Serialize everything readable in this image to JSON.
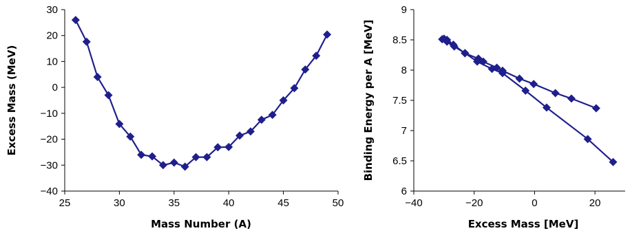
{
  "colors": {
    "series": "#1f1f8c",
    "axis": "#000000",
    "background": "#ffffff"
  },
  "chart_data": [
    {
      "type": "line",
      "title": "",
      "xlabel": "Mass Number (A)",
      "ylabel": "Excess Mass (MeV)",
      "xlim": [
        25,
        50
      ],
      "ylim": [
        -40,
        30
      ],
      "x_ticks": [
        25,
        30,
        35,
        40,
        45,
        50
      ],
      "y_ticks": [
        30,
        20,
        10,
        0,
        -10,
        -20,
        -30,
        -40
      ],
      "grid": false,
      "legend": "none",
      "marker": "diamond",
      "series": [
        {
          "x": [
            26,
            27,
            28,
            29,
            30,
            31,
            32,
            33,
            34,
            35,
            36,
            37,
            38,
            39,
            40,
            41,
            42,
            43,
            44,
            45,
            46,
            47,
            48,
            49
          ],
          "y": [
            26.0,
            17.6,
            4.0,
            -3.0,
            -14.1,
            -19.0,
            -26.0,
            -26.6,
            -30.0,
            -29.0,
            -30.6,
            -26.9,
            -26.9,
            -23.1,
            -23.0,
            -18.6,
            -17.0,
            -12.5,
            -10.6,
            -5.0,
            -0.3,
            6.9,
            12.2,
            20.4
          ]
        }
      ]
    },
    {
      "type": "line",
      "title": "",
      "xlabel": "Excess Mass [MeV]",
      "ylabel": "Binding Energy per A [MeV]",
      "xlim": [
        -40,
        30
      ],
      "ylim": [
        6,
        9
      ],
      "x_ticks": [
        -40,
        -20,
        0,
        20
      ],
      "y_ticks": [
        9,
        8.5,
        8,
        7.5,
        7,
        6.5,
        6
      ],
      "grid": false,
      "legend": "none",
      "marker": "diamond",
      "series": [
        {
          "x": [
            -30.6,
            -29.0,
            -26.9,
            -23.1,
            -18.6,
            -17.0,
            -12.5,
            -10.6,
            -5.0,
            -0.3,
            6.9,
            12.2,
            20.4
          ],
          "y": [
            8.51,
            8.5,
            8.42,
            8.28,
            8.19,
            8.14,
            8.04,
            7.99,
            7.86,
            7.77,
            7.62,
            7.53,
            7.37
          ]
        },
        {
          "x": [
            -30.0,
            -29.0,
            -26.6,
            -23.0,
            -19.0,
            -14.1,
            -10.6,
            -3.0,
            4.0,
            17.6,
            26.0
          ],
          "y": [
            8.52,
            8.47,
            8.39,
            8.28,
            8.14,
            8.02,
            7.95,
            7.66,
            7.38,
            6.86,
            6.48
          ]
        }
      ]
    }
  ]
}
